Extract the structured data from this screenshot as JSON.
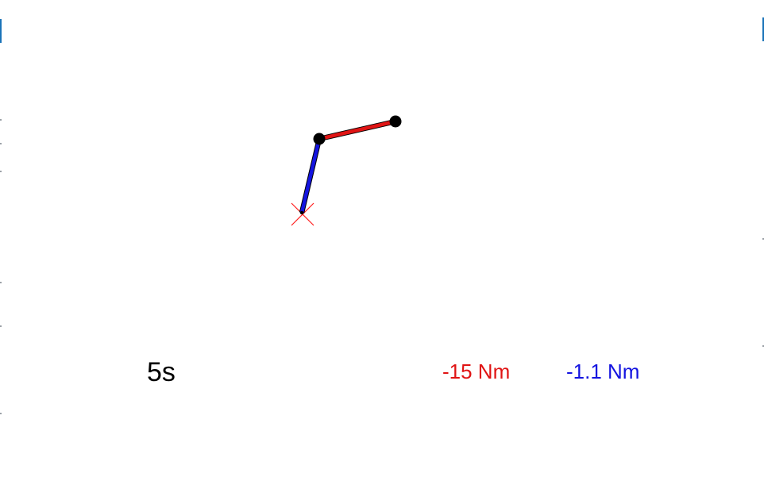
{
  "simulation": {
    "time_label": "5s",
    "torque_link1_label": "-15 Nm",
    "torque_link2_label": "-1.1 Nm"
  },
  "colors": {
    "background": "#ffffff",
    "link1": "#1414e0",
    "link2": "#e01414",
    "joint": "#000000",
    "target_marker": "#ff2020",
    "time_text": "#000000",
    "torque1_text": "#e01414",
    "torque2_text": "#1414e0"
  }
}
